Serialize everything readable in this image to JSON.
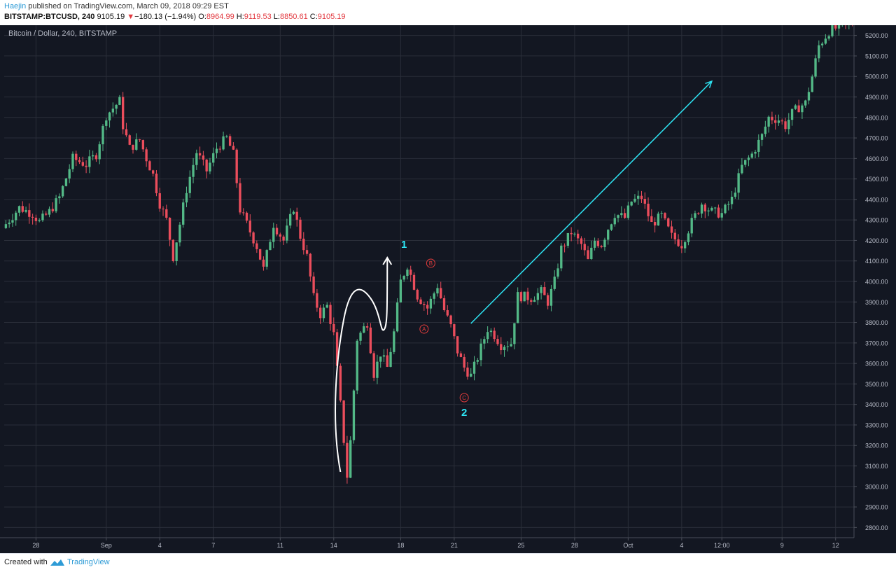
{
  "header": {
    "author": "Haejin",
    "published_text": " published on TradingView.com, March 09, 2018 09:29 EST",
    "symbol": "BITSTAMP:BTCUSD, 240",
    "last": "9105.19",
    "arrow": "▼",
    "change": "−180.13 (−1.94%)",
    "o_label": "O:",
    "o_value": "8964.99",
    "h_label": "H:",
    "h_value": "9119.53",
    "l_label": "L:",
    "l_value": "8850.61",
    "c_label": "C:",
    "c_value": "9105.19"
  },
  "colors": {
    "background": "#131722",
    "grid": "#2a2e39",
    "up": "#53b987",
    "down": "#eb4d5c",
    "axis_text": "#b8bcc8",
    "annotation_cyan": "#2ee6f5",
    "annotation_red": "#e23c3c",
    "annotation_white": "#ffffff"
  },
  "chart_data": {
    "type": "candlestick",
    "title": "Bitcoin / Dollar, 240, BITSTAMP",
    "ylim": [
      2750,
      5250
    ],
    "y_ticks": [
      2800,
      2900,
      3000,
      3100,
      3200,
      3300,
      3400,
      3500,
      3600,
      3700,
      3800,
      3900,
      4000,
      4100,
      4200,
      4300,
      4400,
      4500,
      4600,
      4700,
      4800,
      4900,
      5000,
      5100,
      5200
    ],
    "y_tick_labels": [
      "2800.00",
      "2900.00",
      "3000.00",
      "3100.00",
      "3200.00",
      "3300.00",
      "3400.00",
      "3500.00",
      "3600.00",
      "3700.00",
      "3800.00",
      "3900.00",
      "4000.00",
      "4100.00",
      "4200.00",
      "4300.00",
      "4400.00",
      "4500.00",
      "4600.00",
      "4700.00",
      "4800.00",
      "4900.00",
      "5000.00",
      "5100.00",
      "5200.00"
    ],
    "x_tick_labels": [
      "28",
      "Sep",
      "4",
      "7",
      "11",
      "14",
      "18",
      "21",
      "25",
      "28",
      "Oct",
      "4",
      "12:00",
      "9",
      "12"
    ],
    "x_tick_index": [
      9,
      30,
      46,
      62,
      82,
      98,
      118,
      134,
      154,
      170,
      186,
      202,
      214,
      232,
      248
    ],
    "grid": true,
    "candle_count": 254,
    "close_path": [
      [
        0,
        4280
      ],
      [
        4,
        4360
      ],
      [
        8,
        4330
      ],
      [
        10,
        4290
      ],
      [
        13,
        4340
      ],
      [
        16,
        4410
      ],
      [
        20,
        4600
      ],
      [
        24,
        4570
      ],
      [
        27,
        4620
      ],
      [
        30,
        4810
      ],
      [
        34,
        4880
      ],
      [
        35,
        4760
      ],
      [
        37,
        4650
      ],
      [
        40,
        4690
      ],
      [
        42,
        4600
      ],
      [
        44,
        4520
      ],
      [
        46,
        4380
      ],
      [
        48,
        4300
      ],
      [
        50,
        4120
      ],
      [
        52,
        4280
      ],
      [
        54,
        4450
      ],
      [
        57,
        4630
      ],
      [
        60,
        4540
      ],
      [
        63,
        4650
      ],
      [
        66,
        4700
      ],
      [
        68,
        4620
      ],
      [
        70,
        4350
      ],
      [
        72,
        4280
      ],
      [
        75,
        4170
      ],
      [
        77,
        4060
      ],
      [
        80,
        4280
      ],
      [
        83,
        4200
      ],
      [
        86,
        4360
      ],
      [
        88,
        4220
      ],
      [
        90,
        4120
      ],
      [
        92,
        3920
      ],
      [
        94,
        3840
      ],
      [
        96,
        3880
      ],
      [
        98,
        3740
      ],
      [
        100,
        3400
      ],
      [
        102,
        3050
      ],
      [
        103,
        3220
      ],
      [
        105,
        3720
      ],
      [
        108,
        3800
      ],
      [
        110,
        3550
      ],
      [
        112,
        3650
      ],
      [
        114,
        3580
      ],
      [
        116,
        3750
      ],
      [
        118,
        4000
      ],
      [
        120,
        4080
      ],
      [
        123,
        3930
      ],
      [
        126,
        3870
      ],
      [
        129,
        3980
      ],
      [
        131,
        3860
      ],
      [
        133,
        3780
      ],
      [
        135,
        3660
      ],
      [
        137,
        3580
      ],
      [
        139,
        3540
      ],
      [
        141,
        3630
      ],
      [
        144,
        3770
      ],
      [
        146,
        3740
      ],
      [
        148,
        3690
      ],
      [
        151,
        3700
      ],
      [
        153,
        3930
      ],
      [
        157,
        3920
      ],
      [
        160,
        3950
      ],
      [
        162,
        3900
      ],
      [
        164,
        4000
      ],
      [
        166,
        4160
      ],
      [
        169,
        4240
      ],
      [
        172,
        4180
      ],
      [
        174,
        4100
      ],
      [
        176,
        4200
      ],
      [
        178,
        4180
      ],
      [
        180,
        4260
      ],
      [
        182,
        4330
      ],
      [
        185,
        4310
      ],
      [
        187,
        4390
      ],
      [
        190,
        4410
      ],
      [
        193,
        4280
      ],
      [
        196,
        4320
      ],
      [
        199,
        4220
      ],
      [
        202,
        4180
      ],
      [
        205,
        4290
      ],
      [
        208,
        4380
      ],
      [
        211,
        4340
      ],
      [
        214,
        4330
      ],
      [
        217,
        4400
      ],
      [
        220,
        4560
      ],
      [
        223,
        4620
      ],
      [
        226,
        4710
      ],
      [
        228,
        4800
      ],
      [
        231,
        4790
      ],
      [
        233,
        4760
      ],
      [
        235,
        4820
      ],
      [
        237,
        4850
      ],
      [
        239,
        4870
      ],
      [
        241,
        5000
      ],
      [
        243,
        5150
      ],
      [
        246,
        5220
      ],
      [
        250,
        5250
      ],
      [
        253,
        5260
      ]
    ],
    "annotations": {
      "wave_1": "1",
      "wave_2": "2",
      "wave_a": "A",
      "wave_b": "B",
      "wave_c": "C"
    }
  },
  "footer": {
    "created_with": "Created with",
    "brand": "TradingView"
  }
}
